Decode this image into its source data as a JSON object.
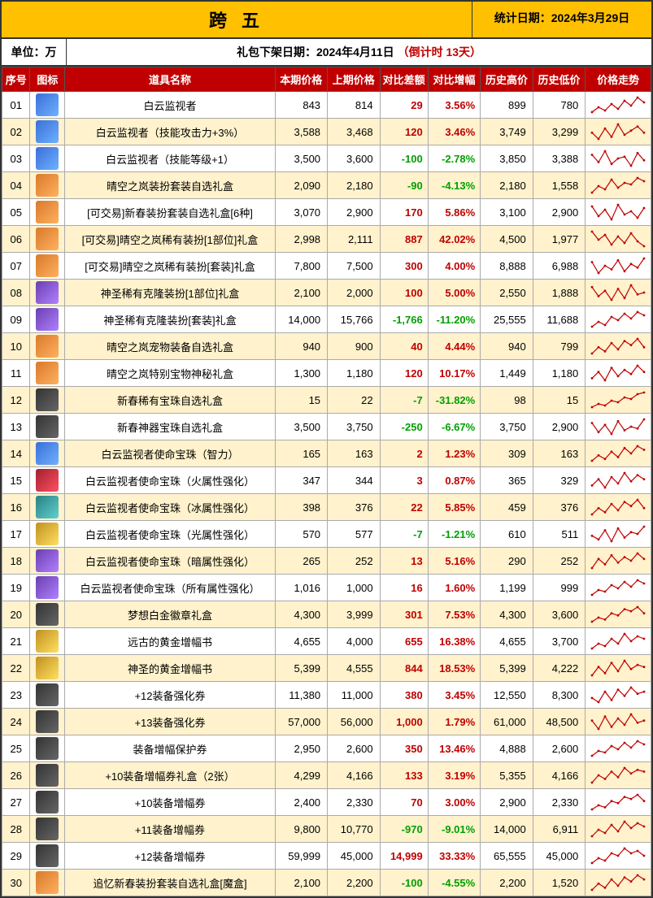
{
  "header": {
    "title": "跨 五",
    "date_label": "统计日期：2024年3月29日",
    "unit": "单位：万",
    "notice_prefix": "礼包下架日期：2024年4月11日",
    "notice_countdown": "（倒计时 13天）"
  },
  "columns": [
    "序号",
    "图标",
    "道具名称",
    "本期价格",
    "上期价格",
    "对比差额",
    "对比增幅",
    "历史高价",
    "历史低价",
    "价格走势"
  ],
  "icon_colors": {
    "blue": "linear-gradient(135deg,#3a6fd8,#6fb0ff)",
    "orange": "linear-gradient(135deg,#d87a2a,#ffb060)",
    "purple": "linear-gradient(135deg,#6a3fb0,#b080ff)",
    "dark": "linear-gradient(135deg,#333,#666)",
    "gold": "linear-gradient(135deg,#c09020,#ffe060)",
    "red": "linear-gradient(135deg,#a02030,#ff5060)",
    "teal": "linear-gradient(135deg,#2a8080,#60d0d0)"
  },
  "rows": [
    {
      "seq": "01",
      "icon": "blue",
      "name": "白云监视者",
      "cur": 843,
      "prev": 814,
      "diff": 29,
      "pct": "3.56%",
      "hi": 899,
      "lo": 780,
      "spark": [
        5,
        8,
        6,
        10,
        7,
        12,
        9,
        14,
        11
      ]
    },
    {
      "seq": "02",
      "icon": "blue",
      "name": "白云监视者（技能攻击力+3%）",
      "cur": 3588,
      "prev": 3468,
      "diff": 120,
      "pct": "3.46%",
      "hi": 3749,
      "lo": 3299,
      "spark": [
        10,
        7,
        12,
        8,
        14,
        9,
        11,
        13,
        10
      ]
    },
    {
      "seq": "03",
      "icon": "blue",
      "name": "白云监视者（技能等级+1）",
      "cur": 3500,
      "prev": 3600,
      "diff": -100,
      "pct": "-2.78%",
      "hi": 3850,
      "lo": 3388,
      "spark": [
        12,
        8,
        14,
        7,
        10,
        11,
        6,
        13,
        9
      ]
    },
    {
      "seq": "04",
      "icon": "orange",
      "name": "晴空之岚装扮套装自选礼盒",
      "cur": 2090,
      "prev": 2180,
      "diff": -90,
      "pct": "-4.13%",
      "hi": 2180,
      "lo": 1558,
      "spark": [
        6,
        10,
        8,
        14,
        9,
        12,
        11,
        15,
        13
      ]
    },
    {
      "seq": "05",
      "icon": "orange",
      "name": "[可交易]新春装扮套装自选礼盒[6种]",
      "cur": 3070,
      "prev": 2900,
      "diff": 170,
      "pct": "5.86%",
      "hi": 3100,
      "lo": 2900,
      "spark": [
        14,
        8,
        12,
        6,
        15,
        9,
        11,
        7,
        13
      ]
    },
    {
      "seq": "06",
      "icon": "orange",
      "name": "[可交易]晴空之岚稀有装扮[1部位]礼盒",
      "cur": 2998,
      "prev": 2111,
      "diff": 887,
      "pct": "42.02%",
      "hi": 4500,
      "lo": 1977,
      "spark": [
        15,
        10,
        13,
        7,
        12,
        8,
        14,
        9,
        6
      ]
    },
    {
      "seq": "07",
      "icon": "orange",
      "name": "[可交易]晴空之岚稀有装扮[套装]礼盒",
      "cur": 7800,
      "prev": 7500,
      "diff": 300,
      "pct": "4.00%",
      "hi": 8888,
      "lo": 6988,
      "spark": [
        13,
        7,
        11,
        9,
        14,
        8,
        12,
        10,
        15
      ]
    },
    {
      "seq": "08",
      "icon": "purple",
      "name": "神圣稀有克隆装扮[1部位]礼盒",
      "cur": 2100,
      "prev": 2000,
      "diff": 100,
      "pct": "5.00%",
      "hi": 2550,
      "lo": 1888,
      "spark": [
        14,
        9,
        12,
        7,
        13,
        8,
        15,
        10,
        11
      ]
    },
    {
      "seq": "09",
      "icon": "purple",
      "name": "神圣稀有克隆装扮[套装]礼盒",
      "cur": 14000,
      "prev": 15766,
      "diff": -1766,
      "pct": "-11.20%",
      "hi": 25555,
      "lo": 11688,
      "spark": [
        6,
        9,
        7,
        12,
        10,
        14,
        11,
        15,
        13
      ]
    },
    {
      "seq": "10",
      "icon": "orange",
      "name": "晴空之岚宠物装备自选礼盒",
      "cur": 940,
      "prev": 900,
      "diff": 40,
      "pct": "4.44%",
      "hi": 940,
      "lo": 799,
      "spark": [
        8,
        11,
        9,
        13,
        10,
        14,
        12,
        15,
        11
      ]
    },
    {
      "seq": "11",
      "icon": "orange",
      "name": "晴空之岚特别宝物神秘礼盒",
      "cur": 1300,
      "prev": 1180,
      "diff": 120,
      "pct": "10.17%",
      "hi": 1449,
      "lo": 1180,
      "spark": [
        9,
        12,
        8,
        14,
        10,
        13,
        11,
        15,
        12
      ]
    },
    {
      "seq": "12",
      "icon": "dark",
      "name": "新春稀有宝珠自选礼盒",
      "cur": 15,
      "prev": 22,
      "diff": -7,
      "pct": "-31.82%",
      "hi": 98,
      "lo": 15,
      "spark": [
        6,
        8,
        7,
        10,
        9,
        12,
        11,
        14,
        15
      ]
    },
    {
      "seq": "13",
      "icon": "dark",
      "name": "新春神器宝珠自选礼盒",
      "cur": 3500,
      "prev": 3750,
      "diff": -250,
      "pct": "-6.67%",
      "hi": 3750,
      "lo": 2900,
      "spark": [
        13,
        8,
        12,
        7,
        14,
        9,
        11,
        10,
        15
      ]
    },
    {
      "seq": "14",
      "icon": "blue",
      "name": "白云监视者使命宝珠（智力）",
      "cur": 165,
      "prev": 163,
      "diff": 2,
      "pct": "1.23%",
      "hi": 309,
      "lo": 163,
      "spark": [
        7,
        10,
        8,
        12,
        9,
        14,
        11,
        15,
        13
      ]
    },
    {
      "seq": "15",
      "icon": "red",
      "name": "白云监视者使命宝珠（火属性强化）",
      "cur": 347,
      "prev": 344,
      "diff": 3,
      "pct": "0.87%",
      "hi": 365,
      "lo": 329,
      "spark": [
        9,
        12,
        8,
        13,
        10,
        15,
        11,
        14,
        12
      ]
    },
    {
      "seq": "16",
      "icon": "teal",
      "name": "白云监视者使命宝珠（冰属性强化）",
      "cur": 398,
      "prev": 376,
      "diff": 22,
      "pct": "5.85%",
      "hi": 459,
      "lo": 376,
      "spark": [
        8,
        11,
        9,
        13,
        10,
        14,
        12,
        15,
        11
      ]
    },
    {
      "seq": "17",
      "icon": "gold",
      "name": "白云监视者使命宝珠（光属性强化）",
      "cur": 570,
      "prev": 577,
      "diff": -7,
      "pct": "-1.21%",
      "hi": 610,
      "lo": 511,
      "spark": [
        10,
        8,
        13,
        7,
        14,
        9,
        12,
        11,
        15
      ]
    },
    {
      "seq": "18",
      "icon": "purple",
      "name": "白云监视者使命宝珠（暗属性强化）",
      "cur": 265,
      "prev": 252,
      "diff": 13,
      "pct": "5.16%",
      "hi": 290,
      "lo": 252,
      "spark": [
        7,
        12,
        9,
        14,
        10,
        13,
        11,
        15,
        12
      ]
    },
    {
      "seq": "19",
      "icon": "purple",
      "name": "白云监视者使命宝珠（所有属性强化）",
      "cur": 1016,
      "prev": 1000,
      "diff": 16,
      "pct": "1.60%",
      "hi": 1199,
      "lo": 999,
      "spark": [
        6,
        9,
        8,
        12,
        10,
        14,
        11,
        15,
        13
      ]
    },
    {
      "seq": "20",
      "icon": "dark",
      "name": "梦想白金徽章礼盒",
      "cur": 4300,
      "prev": 3999,
      "diff": 301,
      "pct": "7.53%",
      "hi": 4300,
      "lo": 3600,
      "spark": [
        8,
        10,
        9,
        12,
        11,
        14,
        13,
        15,
        12
      ]
    },
    {
      "seq": "21",
      "icon": "gold",
      "name": "远古的黄金增幅书",
      "cur": 4655,
      "prev": 4000,
      "diff": 655,
      "pct": "16.38%",
      "hi": 4655,
      "lo": 3700,
      "spark": [
        9,
        11,
        10,
        13,
        11,
        15,
        12,
        14,
        13
      ]
    },
    {
      "seq": "22",
      "icon": "gold",
      "name": "神圣的黄金增幅书",
      "cur": 5399,
      "prev": 4555,
      "diff": 844,
      "pct": "18.53%",
      "hi": 5399,
      "lo": 4222,
      "spark": [
        8,
        12,
        9,
        14,
        10,
        15,
        11,
        13,
        12
      ]
    },
    {
      "seq": "23",
      "icon": "dark",
      "name": "+12装备强化券",
      "cur": 11380,
      "prev": 11000,
      "diff": 380,
      "pct": "3.45%",
      "hi": 12550,
      "lo": 8300,
      "spark": [
        10,
        8,
        13,
        9,
        14,
        11,
        15,
        12,
        13
      ]
    },
    {
      "seq": "24",
      "icon": "dark",
      "name": "+13装备强化券",
      "cur": 57000,
      "prev": 56000,
      "diff": 1000,
      "pct": "1.79%",
      "hi": 61000,
      "lo": 48500,
      "spark": [
        12,
        8,
        14,
        9,
        13,
        10,
        15,
        11,
        12
      ]
    },
    {
      "seq": "25",
      "icon": "dark",
      "name": "装备增幅保护券",
      "cur": 2950,
      "prev": 2600,
      "diff": 350,
      "pct": "13.46%",
      "hi": 4888,
      "lo": 2600,
      "spark": [
        6,
        9,
        8,
        12,
        10,
        14,
        11,
        15,
        13
      ]
    },
    {
      "seq": "26",
      "icon": "dark",
      "name": "+10装备增幅券礼盒（2张）",
      "cur": 4299,
      "prev": 4166,
      "diff": 133,
      "pct": "3.19%",
      "hi": 5355,
      "lo": 4166,
      "spark": [
        7,
        11,
        9,
        13,
        10,
        15,
        12,
        14,
        13
      ]
    },
    {
      "seq": "27",
      "icon": "dark",
      "name": "+10装备增幅券",
      "cur": 2400,
      "prev": 2330,
      "diff": 70,
      "pct": "3.00%",
      "hi": 2900,
      "lo": 2330,
      "spark": [
        8,
        10,
        9,
        12,
        11,
        14,
        13,
        15,
        12
      ]
    },
    {
      "seq": "28",
      "icon": "dark",
      "name": "+11装备增幅券",
      "cur": 9800,
      "prev": 10770,
      "diff": -970,
      "pct": "-9.01%",
      "hi": 14000,
      "lo": 6911,
      "spark": [
        6,
        10,
        8,
        13,
        9,
        15,
        11,
        14,
        12
      ]
    },
    {
      "seq": "29",
      "icon": "dark",
      "name": "+12装备增幅券",
      "cur": 59999,
      "prev": 45000,
      "diff": 14999,
      "pct": "33.33%",
      "hi": 65555,
      "lo": 45000,
      "spark": [
        9,
        11,
        10,
        13,
        12,
        15,
        13,
        14,
        12
      ]
    },
    {
      "seq": "30",
      "icon": "orange",
      "name": "追忆新春装扮套装自选礼盒[魔盒]",
      "cur": 2100,
      "prev": 2200,
      "diff": -100,
      "pct": "-4.55%",
      "hi": 2200,
      "lo": 1520,
      "spark": [
        8,
        11,
        9,
        13,
        10,
        14,
        12,
        15,
        13
      ]
    }
  ]
}
